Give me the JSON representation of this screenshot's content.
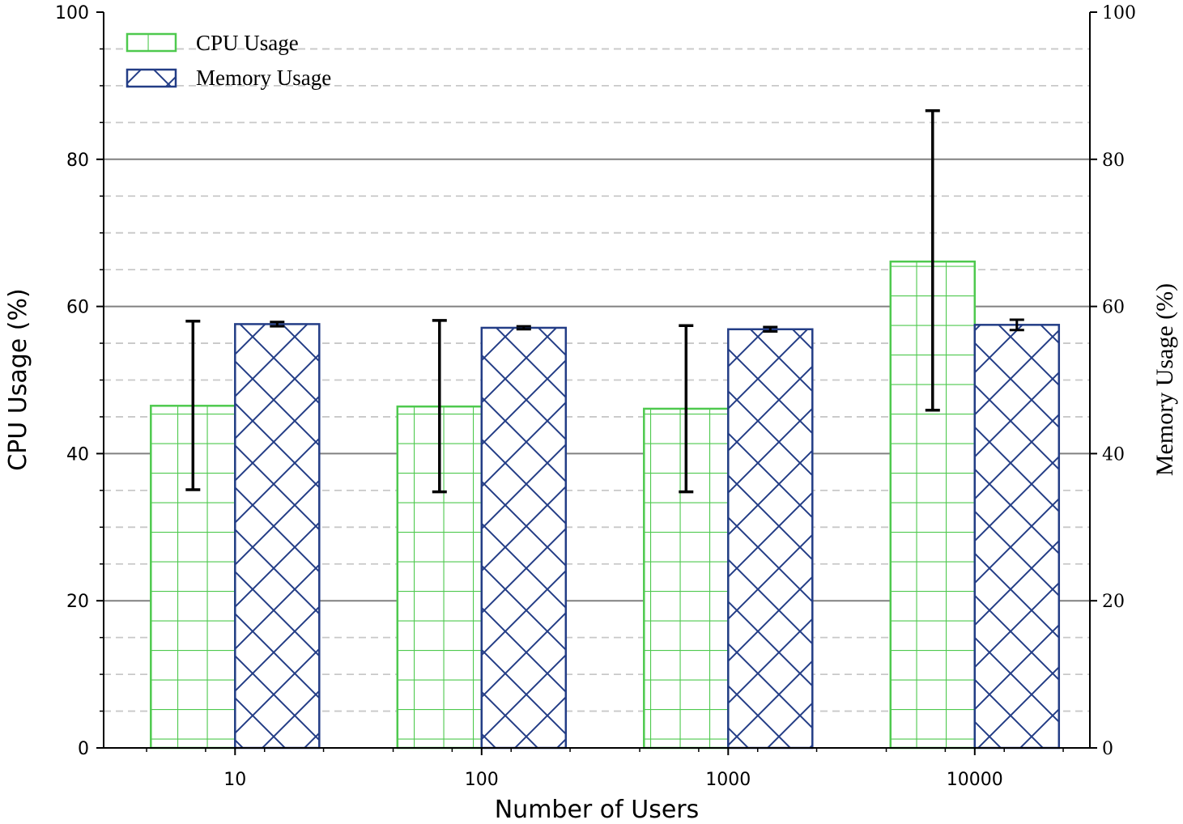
{
  "chart_data": {
    "type": "bar",
    "xlabel": "Number of Users",
    "ylabel": "CPU Usage (%)",
    "y2label": "Memory Usage (%)",
    "categories": [
      "10",
      "100",
      "1000",
      "10000"
    ],
    "ylim": [
      0,
      100
    ],
    "y2lim": [
      0,
      100
    ],
    "yticks": [
      "0",
      "20",
      "40",
      "60",
      "80",
      "100"
    ],
    "y2ticks": [
      "0",
      "20",
      "40",
      "60",
      "80",
      "100"
    ],
    "grid": true,
    "legend_position": "top-left",
    "series": [
      {
        "name": "CPU Usage",
        "axis": "left",
        "color": "#4ec94e",
        "hatch": "grid",
        "values": [
          46.5,
          46.4,
          46.1,
          66.1
        ],
        "error": [
          [
            35.1,
            58.0
          ],
          [
            34.8,
            58.1
          ],
          [
            34.8,
            57.4
          ],
          [
            45.9,
            86.6
          ]
        ]
      },
      {
        "name": "Memory Usage",
        "axis": "right",
        "color": "#233d86",
        "hatch": "diagonal-cross",
        "values": [
          57.6,
          57.1,
          56.9,
          57.5
        ],
        "error": [
          [
            57.3,
            57.9
          ],
          [
            56.9,
            57.3
          ],
          [
            56.6,
            57.2
          ],
          [
            56.8,
            58.2
          ]
        ]
      }
    ]
  }
}
